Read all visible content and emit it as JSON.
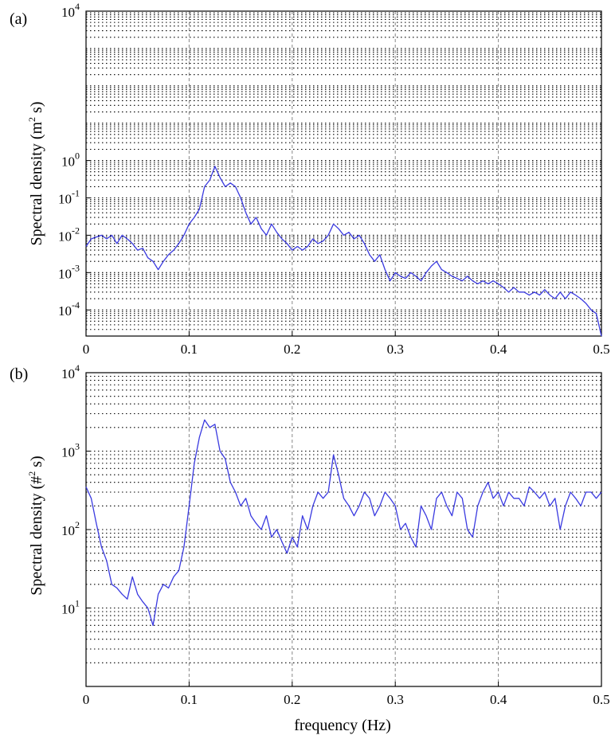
{
  "figure": {
    "xlabel": "frequency (Hz)"
  },
  "chart_data": [
    {
      "type": "line",
      "panel_label": "(a)",
      "ylabel": "Spectral density (m",
      "ylabel_sup": "2",
      "ylabel_tail": " s)",
      "xlabel": "",
      "xlim": [
        0,
        0.5
      ],
      "ylim": [
        2e-05,
        10000
      ],
      "yscale": "log",
      "grid": true,
      "x_ticks": [
        0,
        0.1,
        0.2,
        0.3,
        0.4,
        0.5
      ],
      "x_tick_labels": [
        "0",
        "0.1",
        "0.2",
        "0.3",
        "0.4",
        "0.5"
      ],
      "y_ticks": [
        0.0001,
        0.001,
        0.01,
        0.1,
        1,
        10000
      ],
      "y_tick_base": [
        "10",
        "10",
        "10",
        "10",
        "10",
        "10"
      ],
      "y_tick_exp": [
        "-4",
        "-3",
        "-2",
        "-1",
        "0",
        "4"
      ],
      "series_color": "#3a3ae0",
      "series": [
        {
          "x": [
            0.0,
            0.005,
            0.01,
            0.015,
            0.02,
            0.025,
            0.03,
            0.035,
            0.04,
            0.045,
            0.05,
            0.055,
            0.06,
            0.065,
            0.07,
            0.075,
            0.08,
            0.085,
            0.09,
            0.095,
            0.1,
            0.105,
            0.11,
            0.115,
            0.12,
            0.125,
            0.13,
            0.135,
            0.14,
            0.145,
            0.15,
            0.155,
            0.16,
            0.165,
            0.17,
            0.175,
            0.18,
            0.185,
            0.19,
            0.195,
            0.2,
            0.205,
            0.21,
            0.215,
            0.22,
            0.225,
            0.23,
            0.235,
            0.24,
            0.245,
            0.25,
            0.255,
            0.26,
            0.265,
            0.27,
            0.275,
            0.28,
            0.285,
            0.29,
            0.295,
            0.3,
            0.305,
            0.31,
            0.315,
            0.32,
            0.325,
            0.33,
            0.335,
            0.34,
            0.345,
            0.35,
            0.355,
            0.36,
            0.365,
            0.37,
            0.375,
            0.38,
            0.385,
            0.39,
            0.395,
            0.4,
            0.405,
            0.41,
            0.415,
            0.42,
            0.425,
            0.43,
            0.435,
            0.44,
            0.445,
            0.45,
            0.455,
            0.46,
            0.465,
            0.47,
            0.475,
            0.48,
            0.485,
            0.49,
            0.495,
            0.5
          ],
          "y": [
            0.005,
            0.008,
            0.009,
            0.01,
            0.008,
            0.01,
            0.006,
            0.01,
            0.008,
            0.006,
            0.004,
            0.0045,
            0.0025,
            0.002,
            0.0012,
            0.002,
            0.003,
            0.004,
            0.006,
            0.01,
            0.02,
            0.03,
            0.05,
            0.2,
            0.3,
            0.7,
            0.35,
            0.2,
            0.25,
            0.2,
            0.1,
            0.04,
            0.02,
            0.03,
            0.015,
            0.01,
            0.02,
            0.012,
            0.008,
            0.006,
            0.004,
            0.005,
            0.004,
            0.005,
            0.008,
            0.006,
            0.007,
            0.01,
            0.02,
            0.015,
            0.01,
            0.012,
            0.008,
            0.01,
            0.006,
            0.003,
            0.002,
            0.003,
            0.0012,
            0.0006,
            0.001,
            0.0008,
            0.0007,
            0.001,
            0.0008,
            0.0006,
            0.001,
            0.0015,
            0.002,
            0.0012,
            0.001,
            0.0008,
            0.0007,
            0.0006,
            0.0008,
            0.0006,
            0.0005,
            0.0006,
            0.0005,
            0.0006,
            0.0005,
            0.0004,
            0.0003,
            0.0004,
            0.0003,
            0.0003,
            0.00025,
            0.0003,
            0.00025,
            0.00035,
            0.00025,
            0.0002,
            0.0003,
            0.0002,
            0.0003,
            0.00025,
            0.0002,
            0.00015,
            0.0001,
            8e-05,
            2e-05
          ]
        }
      ]
    },
    {
      "type": "line",
      "panel_label": "(b)",
      "ylabel": "Spectral density (#",
      "ylabel_sup": "2",
      "ylabel_tail": " s)",
      "xlabel": "frequency (Hz)",
      "xlim": [
        0,
        0.5
      ],
      "ylim": [
        1,
        10000
      ],
      "yscale": "log",
      "grid": true,
      "x_ticks": [
        0,
        0.1,
        0.2,
        0.3,
        0.4,
        0.5
      ],
      "x_tick_labels": [
        "0",
        "0.1",
        "0.2",
        "0.3",
        "0.4",
        "0.5"
      ],
      "y_ticks": [
        10,
        100,
        1000,
        10000
      ],
      "y_tick_base": [
        "10",
        "10",
        "10",
        "10"
      ],
      "y_tick_exp": [
        "1",
        "2",
        "3",
        "4"
      ],
      "series_color": "#3a3ae0",
      "series": [
        {
          "x": [
            0.0,
            0.005,
            0.01,
            0.015,
            0.02,
            0.025,
            0.03,
            0.035,
            0.04,
            0.045,
            0.05,
            0.055,
            0.06,
            0.065,
            0.07,
            0.075,
            0.08,
            0.085,
            0.09,
            0.095,
            0.1,
            0.105,
            0.11,
            0.115,
            0.12,
            0.125,
            0.13,
            0.135,
            0.14,
            0.145,
            0.15,
            0.155,
            0.16,
            0.165,
            0.17,
            0.175,
            0.18,
            0.185,
            0.19,
            0.195,
            0.2,
            0.205,
            0.21,
            0.215,
            0.22,
            0.225,
            0.23,
            0.235,
            0.24,
            0.245,
            0.25,
            0.255,
            0.26,
            0.265,
            0.27,
            0.275,
            0.28,
            0.285,
            0.29,
            0.295,
            0.3,
            0.305,
            0.31,
            0.315,
            0.32,
            0.325,
            0.33,
            0.335,
            0.34,
            0.345,
            0.35,
            0.355,
            0.36,
            0.365,
            0.37,
            0.375,
            0.38,
            0.385,
            0.39,
            0.395,
            0.4,
            0.405,
            0.41,
            0.415,
            0.42,
            0.425,
            0.43,
            0.435,
            0.44,
            0.445,
            0.45,
            0.455,
            0.46,
            0.465,
            0.47,
            0.475,
            0.48,
            0.485,
            0.49,
            0.495,
            0.5
          ],
          "y": [
            350,
            250,
            120,
            60,
            40,
            20,
            18,
            15,
            13,
            25,
            15,
            12,
            10,
            6,
            15,
            20,
            18,
            25,
            30,
            60,
            200,
            700,
            1500,
            2500,
            2000,
            2200,
            1000,
            800,
            400,
            300,
            200,
            250,
            150,
            120,
            100,
            150,
            80,
            100,
            70,
            50,
            80,
            60,
            150,
            100,
            200,
            300,
            250,
            300,
            900,
            500,
            250,
            200,
            150,
            200,
            300,
            250,
            150,
            200,
            300,
            250,
            200,
            100,
            120,
            80,
            60,
            200,
            150,
            100,
            250,
            300,
            200,
            150,
            300,
            250,
            100,
            80,
            200,
            300,
            400,
            250,
            300,
            200,
            300,
            250,
            250,
            200,
            350,
            300,
            250,
            300,
            200,
            250,
            100,
            200,
            300,
            250,
            200,
            300,
            300,
            250,
            300
          ]
        }
      ]
    }
  ]
}
